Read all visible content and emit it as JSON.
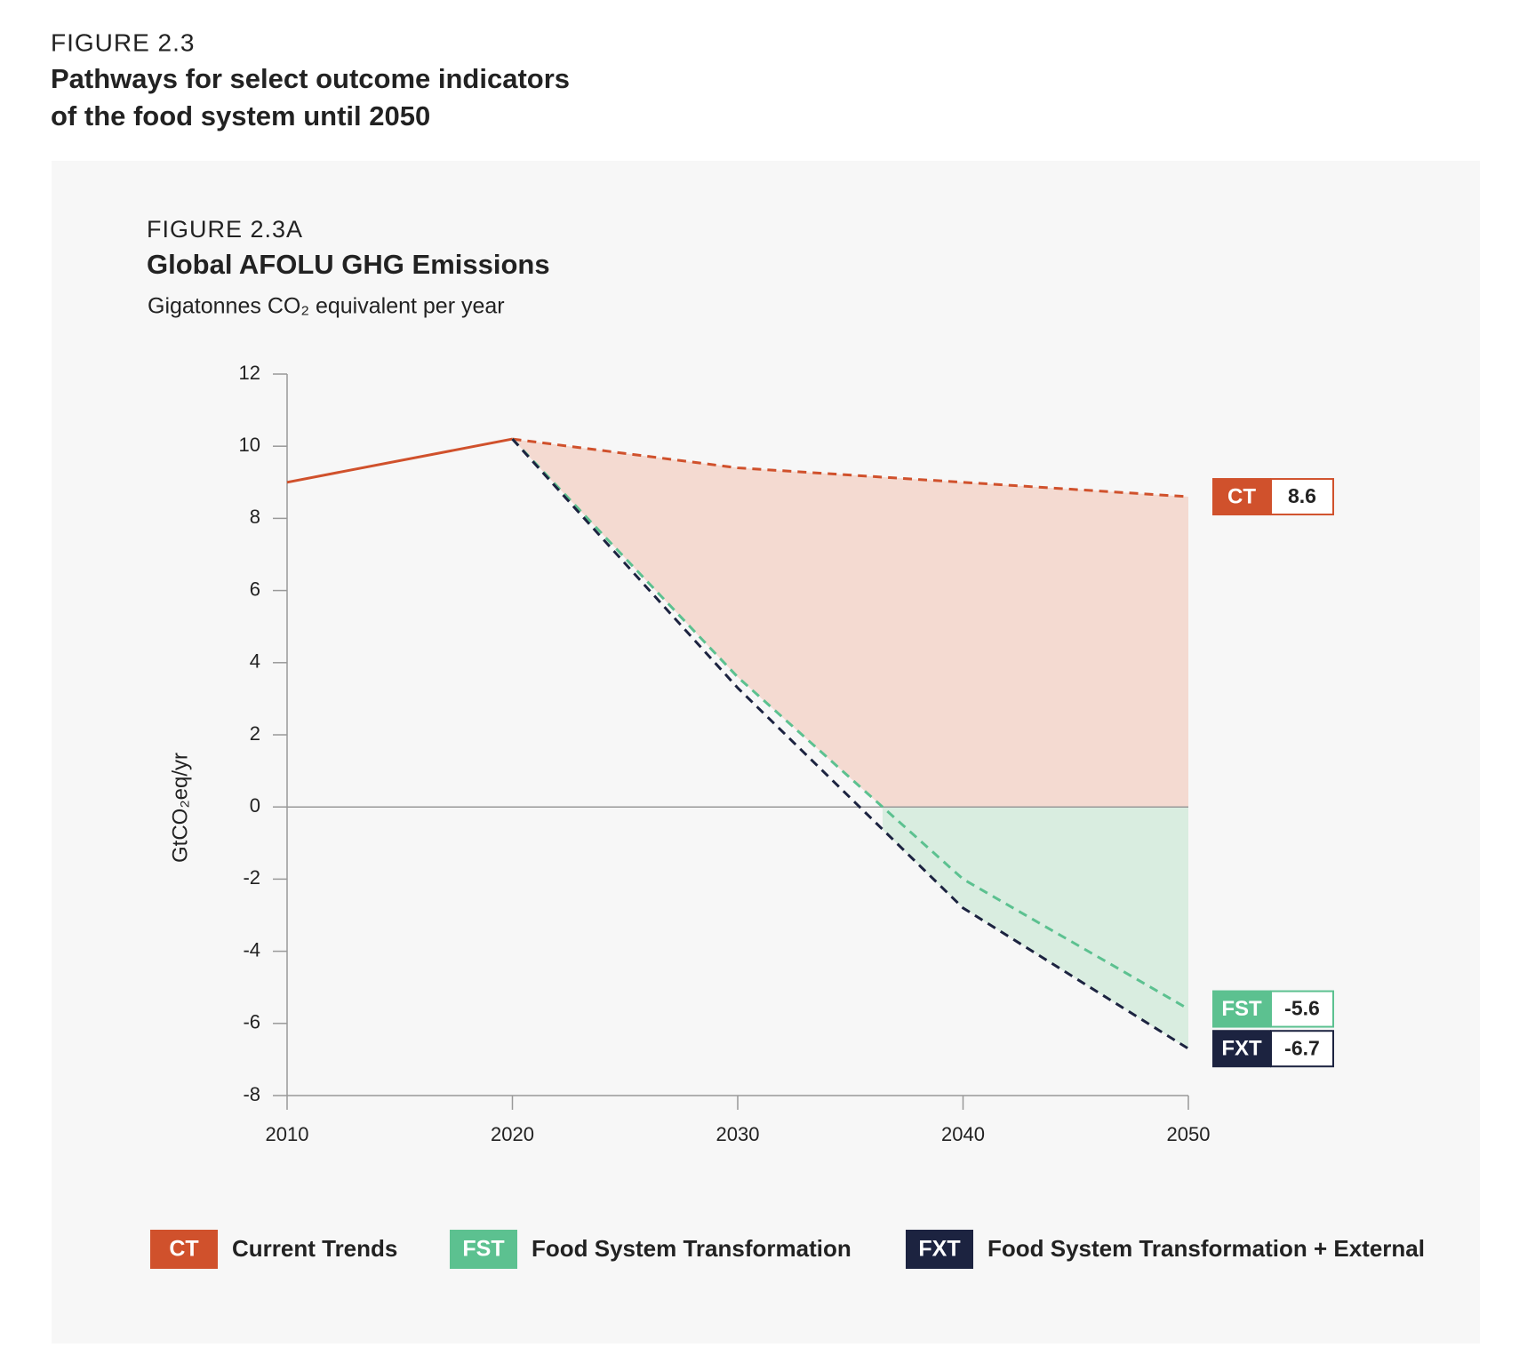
{
  "header": {
    "figure": "FIGURE 2.3",
    "title_lines": [
      "Pathways for select outcome indicators",
      "of the food system until 2050"
    ]
  },
  "chart_data": {
    "type": "line",
    "figure": "FIGURE 2.3A",
    "title": "Global AFOLU GHG Emissions",
    "subtitle": "Gigatonnes CO₂ equivalent per year",
    "ylabel": "GtCO₂eq/yr",
    "x": [
      2010,
      2020,
      2030,
      2040,
      2050
    ],
    "xlim": [
      2010,
      2050
    ],
    "xticks": [
      2010,
      2020,
      2030,
      2040,
      2050
    ],
    "ylim": [
      -8,
      12
    ],
    "yticks": [
      -8,
      -6,
      -4,
      -2,
      0,
      2,
      4,
      6,
      8,
      10,
      12
    ],
    "projection_start": 2020,
    "series": [
      {
        "code": "CT",
        "name": "Current Trends",
        "color": "#d0512c",
        "values": [
          9.0,
          10.2,
          9.4,
          9.0,
          8.6
        ]
      },
      {
        "code": "FST",
        "name": "Food System Transformation",
        "color": "#5cc190",
        "values": [
          null,
          10.2,
          3.6,
          -2.0,
          -5.6
        ]
      },
      {
        "code": "FXT",
        "name": "Food System Transformation + External",
        "color": "#1c2340",
        "values": [
          null,
          10.2,
          3.3,
          -2.8,
          -6.7
        ]
      }
    ],
    "fill_colors": [
      "#f4dad1",
      "#d9ede0"
    ]
  }
}
